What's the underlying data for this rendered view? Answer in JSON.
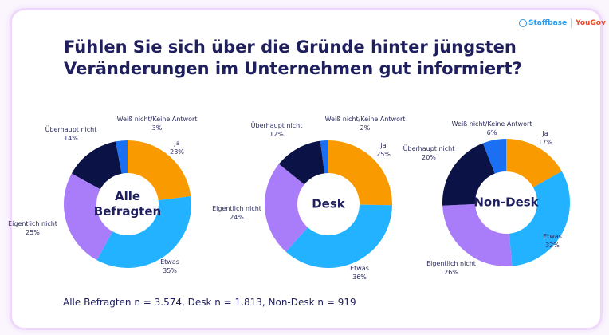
{
  "title_line1": "Fühlen Sie sich über die Gründe hinter jüngsten",
  "title_line2": "Veränderungen im Unternehmen gut informiert?",
  "logo": {
    "staffbase": "Staffbase",
    "yougov": "YouGov"
  },
  "note": "Alle Befragten n = 3.574, Desk n = 1.813, Non-Desk n = 919",
  "colors": {
    "Ja": "#f99a00",
    "Etwas": "#22b2ff",
    "Eigentlich nicht": "#a97cfa",
    "Überhaupt nicht": "#0b1246",
    "Weiß nicht/Keine Antwort": "#1a6ff2"
  },
  "chart_data": [
    {
      "type": "pie",
      "donut": true,
      "center_label": [
        "Alle",
        "Befragten"
      ],
      "categories": [
        "Ja",
        "Etwas",
        "Eigentlich nicht",
        "Überhaupt nicht",
        "Weiß nicht/Keine Antwort"
      ],
      "values": [
        23,
        35,
        25,
        14,
        3
      ],
      "labels": [
        "23%",
        "35%",
        "25%",
        "14%",
        "3%"
      ]
    },
    {
      "type": "pie",
      "donut": true,
      "center_label": [
        "Desk"
      ],
      "categories": [
        "Ja",
        "Etwas",
        "Eigentlich nicht",
        "Überhaupt nicht",
        "Weiß nicht/Keine Antwort"
      ],
      "values": [
        25,
        36,
        24,
        12,
        2
      ],
      "labels": [
        "25%",
        "36%",
        "24%",
        "12%",
        "2%"
      ]
    },
    {
      "type": "pie",
      "donut": true,
      "center_label": [
        "Non-Desk"
      ],
      "categories": [
        "Ja",
        "Etwas",
        "Eigentlich nicht",
        "Überhaupt nicht",
        "Weiß nicht/Keine Antwort"
      ],
      "values": [
        17,
        32,
        26,
        20,
        6
      ],
      "labels": [
        "17%",
        "32%",
        "26%",
        "20%",
        "6%"
      ]
    }
  ]
}
